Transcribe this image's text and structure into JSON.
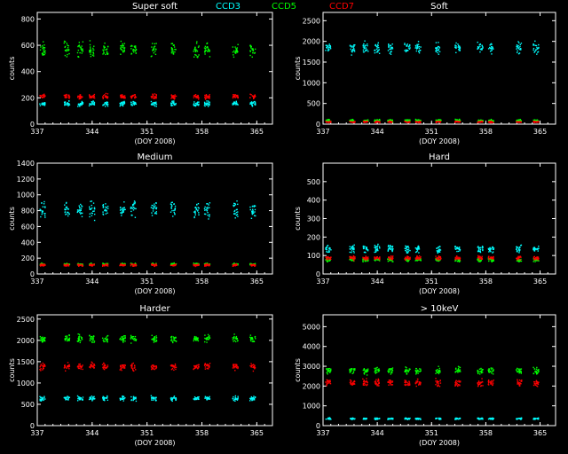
{
  "legend": [
    {
      "name": "CCD3",
      "color": "#00ffff"
    },
    {
      "name": "CCD5",
      "color": "#00ff00"
    },
    {
      "name": "CCD7",
      "color": "#ff0000"
    }
  ],
  "chart_data": [
    {
      "type": "scatter",
      "title": "Super soft",
      "xlabel": "(DOY 2008)",
      "ylabel": "counts",
      "xlim": [
        337,
        367
      ],
      "ylim": [
        0,
        850
      ],
      "xticks": [
        337,
        344,
        351,
        358,
        365
      ],
      "xtick_labels": [
        "337",
        "344",
        "351",
        "358",
        "365"
      ],
      "yticks": [
        0,
        200,
        400,
        600,
        800
      ],
      "ytick_labels": [
        "0",
        "200",
        "400",
        "600",
        "800"
      ],
      "series": [
        {
          "name": "CCD3",
          "color": "#00ffff",
          "level": 160,
          "spread": 25
        },
        {
          "name": "CCD5",
          "color": "#00ff00",
          "level": 570,
          "spread": 80
        },
        {
          "name": "CCD7",
          "color": "#ff0000",
          "level": 215,
          "spread": 25
        }
      ]
    },
    {
      "type": "scatter",
      "title": "Soft",
      "xlabel": "(DOY 2008)",
      "ylabel": "counts",
      "xlim": [
        337,
        367
      ],
      "ylim": [
        0,
        2700
      ],
      "xticks": [
        337,
        344,
        351,
        358,
        365
      ],
      "xtick_labels": [
        "337",
        "344",
        "351",
        "358",
        "365"
      ],
      "yticks": [
        0,
        500,
        1000,
        1500,
        2000,
        2500
      ],
      "ytick_labels": [
        "0",
        "500",
        "1000",
        "1500",
        "2000",
        "2500"
      ],
      "series": [
        {
          "name": "CCD3",
          "color": "#00ffff",
          "level": 1850,
          "spread": 200
        },
        {
          "name": "CCD5",
          "color": "#00ff00",
          "level": 100,
          "spread": 40
        },
        {
          "name": "CCD7",
          "color": "#ff0000",
          "level": 70,
          "spread": 30
        }
      ]
    },
    {
      "type": "scatter",
      "title": "Medium",
      "xlabel": "(DOY 2008)",
      "ylabel": "counts",
      "xlim": [
        337,
        367
      ],
      "ylim": [
        0,
        1400
      ],
      "xticks": [
        337,
        344,
        351,
        358,
        365
      ],
      "xtick_labels": [
        "337",
        "344",
        "351",
        "358",
        "365"
      ],
      "yticks": [
        0,
        200,
        400,
        600,
        800,
        1000,
        1200,
        1400
      ],
      "ytick_labels": [
        "0",
        "200",
        "400",
        "600",
        "800",
        "1000",
        "1200",
        "1400"
      ],
      "series": [
        {
          "name": "CCD3",
          "color": "#00ffff",
          "level": 820,
          "spread": 150
        },
        {
          "name": "CCD5",
          "color": "#00ff00",
          "level": 130,
          "spread": 20
        },
        {
          "name": "CCD7",
          "color": "#ff0000",
          "level": 120,
          "spread": 20
        }
      ]
    },
    {
      "type": "scatter",
      "title": "Hard",
      "xlabel": "(DOY 2008)",
      "ylabel": "counts",
      "xlim": [
        337,
        367
      ],
      "ylim": [
        0,
        600
      ],
      "xticks": [
        337,
        344,
        351,
        358,
        365
      ],
      "xtick_labels": [
        "337",
        "344",
        "351",
        "358",
        "365"
      ],
      "yticks": [
        0,
        100,
        200,
        300,
        400,
        500
      ],
      "ytick_labels": [
        "0",
        "100",
        "200",
        "300",
        "400",
        "500"
      ],
      "series": [
        {
          "name": "CCD3",
          "color": "#00ffff",
          "level": 140,
          "spread": 30
        },
        {
          "name": "CCD5",
          "color": "#00ff00",
          "level": 80,
          "spread": 15
        },
        {
          "name": "CCD7",
          "color": "#ff0000",
          "level": 90,
          "spread": 15
        }
      ]
    },
    {
      "type": "scatter",
      "title": "Harder",
      "xlabel": "(DOY 2008)",
      "ylabel": "counts",
      "xlim": [
        337,
        367
      ],
      "ylim": [
        0,
        2600
      ],
      "xticks": [
        337,
        344,
        351,
        358,
        365
      ],
      "xtick_labels": [
        "337",
        "344",
        "351",
        "358",
        "365"
      ],
      "yticks": [
        0,
        500,
        1000,
        1500,
        2000,
        2500
      ],
      "ytick_labels": [
        "0",
        "500",
        "1000",
        "1500",
        "2000",
        "2500"
      ],
      "series": [
        {
          "name": "CCD3",
          "color": "#00ffff",
          "level": 650,
          "spread": 80
        },
        {
          "name": "CCD5",
          "color": "#00ff00",
          "level": 2050,
          "spread": 120
        },
        {
          "name": "CCD7",
          "color": "#ff0000",
          "level": 1400,
          "spread": 120
        }
      ]
    },
    {
      "type": "scatter",
      "title": "> 10keV",
      "xlabel": "(DOY 2008)",
      "ylabel": "counts",
      "xlim": [
        337,
        367
      ],
      "ylim": [
        0,
        5600
      ],
      "xticks": [
        337,
        344,
        351,
        358,
        365
      ],
      "xtick_labels": [
        "337",
        "344",
        "351",
        "358",
        "365"
      ],
      "yticks": [
        0,
        1000,
        2000,
        3000,
        4000,
        5000
      ],
      "ytick_labels": [
        "0",
        "1000",
        "2000",
        "3000",
        "4000",
        "5000"
      ],
      "series": [
        {
          "name": "CCD3",
          "color": "#00ffff",
          "level": 380,
          "spread": 60
        },
        {
          "name": "CCD5",
          "color": "#00ff00",
          "level": 2800,
          "spread": 250
        },
        {
          "name": "CCD7",
          "color": "#ff0000",
          "level": 2200,
          "spread": 250
        }
      ]
    }
  ]
}
